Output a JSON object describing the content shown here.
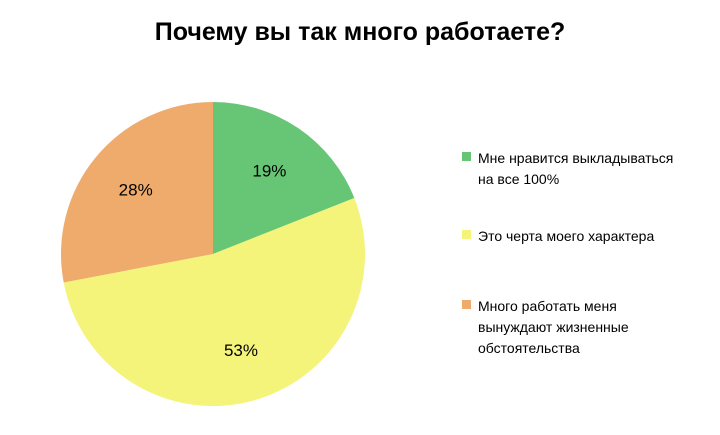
{
  "chart_data": {
    "type": "pie",
    "title": "Почему вы так много работаете?",
    "categories": [
      "Мне нравится выкладываться\nна все 100%",
      "Это черта моего характера",
      "Много работать меня\nвынуждают жизненные\nобстоятельства"
    ],
    "values": [
      19,
      53,
      28
    ],
    "labels": [
      "19%",
      "53%",
      "28%"
    ],
    "colors": [
      "#66c675",
      "#f4f37a",
      "#eeab6b"
    ],
    "legend": "right",
    "start_angle_deg": 0,
    "direction": "clockwise"
  }
}
